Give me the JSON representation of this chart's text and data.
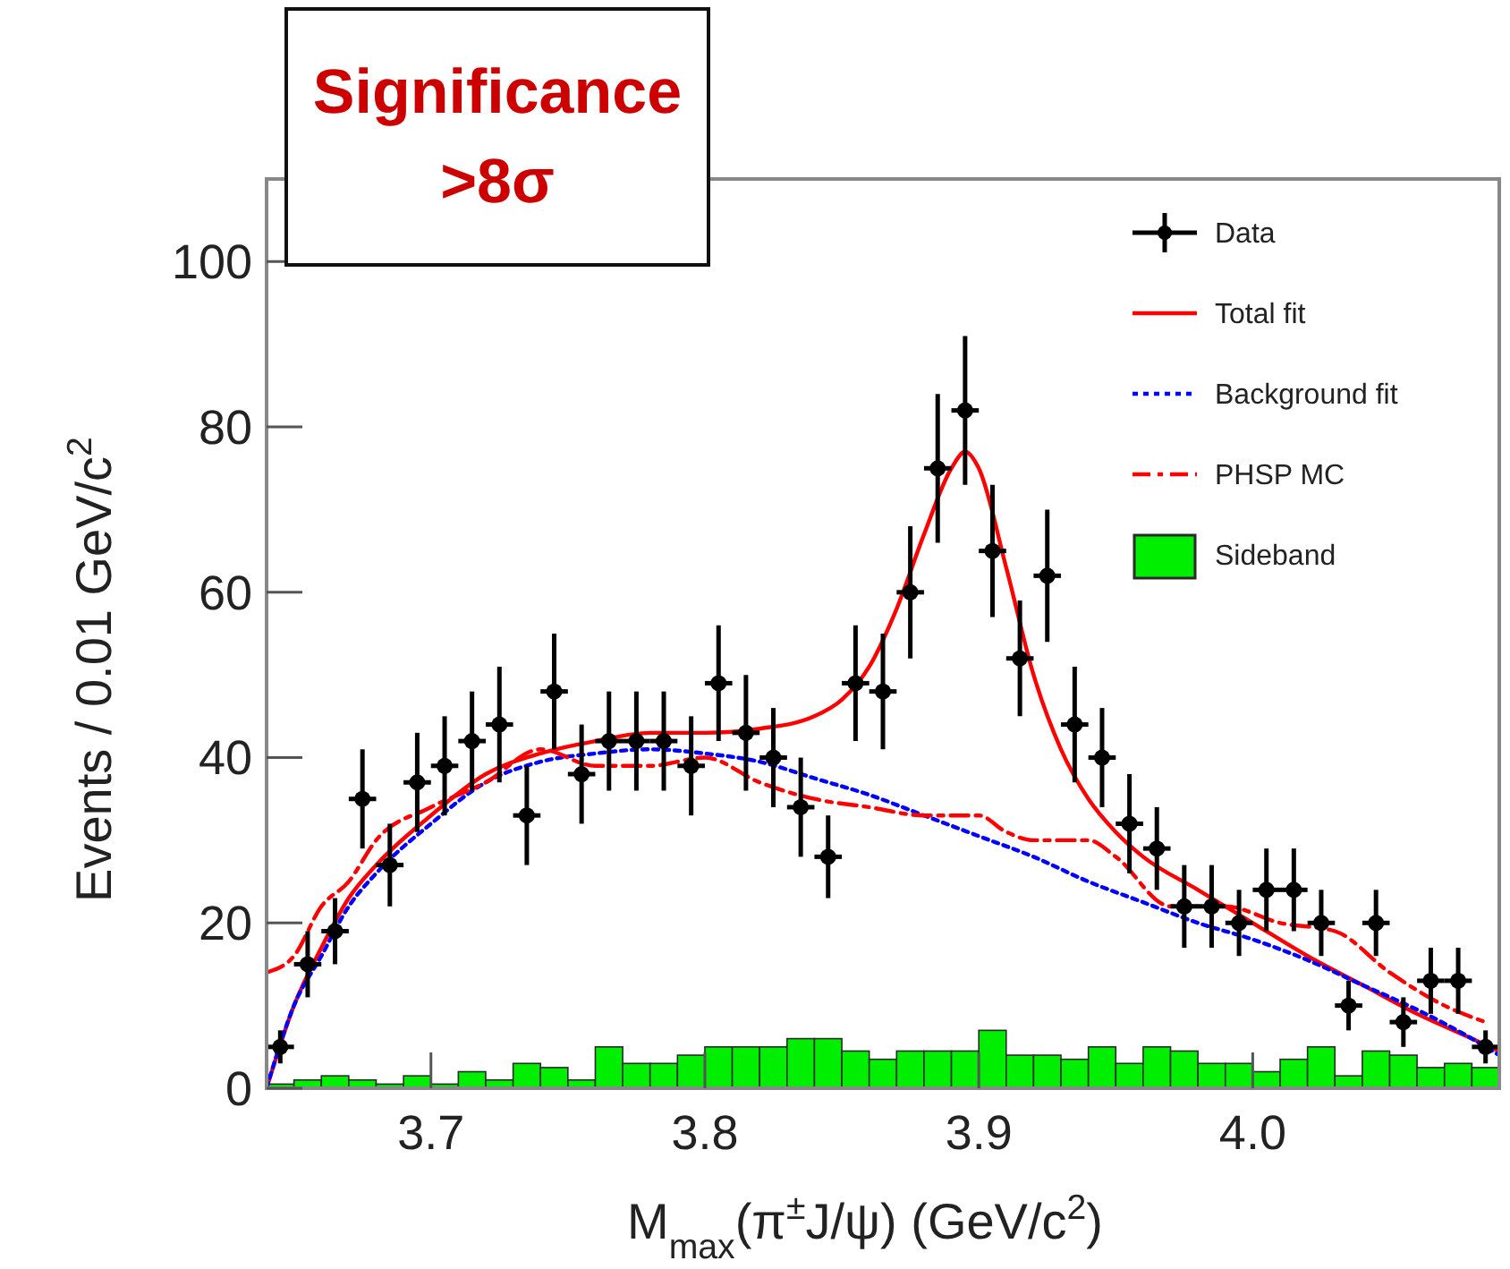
{
  "chart_data": {
    "type": "scatter",
    "annotations": [
      "Significance\n>8σ"
    ],
    "xlabel": "M$_{max}$(π$^{±}$J/ψ) (GeV/c$^{2}$)",
    "ylabel": "Events / 0.01 GeV/c$^{2}$",
    "xlim": [
      3.64,
      4.09
    ],
    "ylim": [
      0,
      110
    ],
    "xticks": [
      {
        "value": 3.7,
        "label": "3.7"
      },
      {
        "value": 3.8,
        "label": "3.8"
      },
      {
        "value": 3.9,
        "label": "3.9"
      },
      {
        "value": 4.0,
        "label": "4.0"
      }
    ],
    "yticks": [
      0,
      20,
      40,
      60,
      80,
      100
    ],
    "legend": "top right",
    "series": [
      {
        "name": "Data",
        "color": "#000000",
        "marker": "circle",
        "x": [
          3.645,
          3.655,
          3.665,
          3.675,
          3.685,
          3.695,
          3.705,
          3.715,
          3.725,
          3.735,
          3.745,
          3.755,
          3.765,
          3.775,
          3.785,
          3.795,
          3.805,
          3.815,
          3.825,
          3.835,
          3.845,
          3.855,
          3.865,
          3.875,
          3.885,
          3.895,
          3.905,
          3.915,
          3.925,
          3.935,
          3.945,
          3.955,
          3.965,
          3.975,
          3.985,
          3.995,
          4.005,
          4.015,
          4.025,
          4.035,
          4.045,
          4.055,
          4.065,
          4.075,
          4.085
        ],
        "values": [
          5,
          15,
          19,
          35,
          27,
          37,
          39,
          42,
          44,
          33,
          48,
          38,
          42,
          42,
          42,
          39,
          49,
          43,
          40,
          34,
          28,
          49,
          48,
          60,
          75,
          82,
          65,
          52,
          62,
          44,
          40,
          32,
          29,
          22,
          22,
          20,
          24,
          24,
          20,
          10,
          20,
          8,
          13,
          13,
          5
        ],
        "errors": [
          2,
          4,
          4,
          6,
          5,
          6,
          6,
          6,
          7,
          6,
          7,
          6,
          6,
          6,
          6,
          6,
          7,
          7,
          6,
          6,
          5,
          7,
          7,
          8,
          9,
          9,
          8,
          7,
          8,
          7,
          6,
          6,
          5,
          5,
          5,
          4,
          5,
          5,
          4,
          3,
          4,
          3,
          4,
          4,
          2
        ],
        "xerrors": [
          0.005,
          0.005,
          0.005,
          0.005,
          0.005,
          0.005,
          0.005,
          0.005,
          0.005,
          0.005,
          0.005,
          0.005,
          0.005,
          0.005,
          0.005,
          0.005,
          0.005,
          0.005,
          0.005,
          0.005,
          0.005,
          0.005,
          0.005,
          0.005,
          0.005,
          0.005,
          0.005,
          0.005,
          0.005,
          0.005,
          0.005,
          0.005,
          0.005,
          0.005,
          0.005,
          0.005,
          0.005,
          0.005,
          0.005,
          0.005,
          0.005,
          0.005,
          0.005,
          0.005,
          0.005
        ]
      },
      {
        "name": "Total fit",
        "type": "line",
        "color": "#ff0000",
        "line_style": "solid",
        "x": [
          3.64,
          3.65,
          3.66,
          3.67,
          3.68,
          3.7,
          3.72,
          3.74,
          3.76,
          3.78,
          3.8,
          3.82,
          3.84,
          3.85,
          3.86,
          3.87,
          3.88,
          3.89,
          3.895,
          3.9,
          3.91,
          3.92,
          3.93,
          3.94,
          3.95,
          3.96,
          3.98,
          4.0,
          4.02,
          4.04,
          4.06,
          4.08,
          4.09
        ],
        "values": [
          0,
          10,
          17,
          23,
          27,
          33,
          38,
          40.5,
          42,
          43,
          43,
          43.5,
          45,
          47,
          51,
          58,
          67,
          75,
          77,
          75,
          63,
          50,
          41,
          35,
          31,
          28,
          24,
          20,
          16,
          12.5,
          9,
          6,
          4.5
        ]
      },
      {
        "name": "Background fit",
        "type": "line",
        "color": "#0000ff",
        "line_style": "dotted",
        "x": [
          3.64,
          3.65,
          3.66,
          3.67,
          3.68,
          3.7,
          3.72,
          3.74,
          3.76,
          3.78,
          3.8,
          3.82,
          3.84,
          3.86,
          3.88,
          3.9,
          3.92,
          3.94,
          3.96,
          3.98,
          4.0,
          4.02,
          4.04,
          4.06,
          4.08,
          4.09
        ],
        "values": [
          0,
          10,
          16,
          22,
          26,
          32,
          37,
          39.5,
          40.5,
          41,
          40.5,
          39.5,
          37.5,
          35.5,
          33,
          30.5,
          28,
          25,
          22.5,
          20,
          18,
          15.5,
          12.5,
          9.5,
          6,
          4
        ]
      },
      {
        "name": "PHSP MC",
        "type": "line",
        "color": "#ff0000",
        "line_style": "dashed",
        "x": [
          3.64,
          3.65,
          3.66,
          3.67,
          3.68,
          3.7,
          3.72,
          3.74,
          3.76,
          3.78,
          3.8,
          3.82,
          3.84,
          3.86,
          3.88,
          3.9,
          3.91,
          3.92,
          3.94,
          3.95,
          3.97,
          3.99,
          4.01,
          4.03,
          4.05,
          4.07,
          4.085
        ],
        "values": [
          14,
          16,
          22,
          25,
          30,
          34,
          37,
          41,
          39,
          39,
          40,
          37,
          35,
          34,
          33,
          33,
          31,
          30,
          30,
          28,
          22,
          22,
          20,
          19,
          14,
          10,
          8
        ]
      },
      {
        "name": "Sideband",
        "type": "histogram",
        "color": "#00ee00",
        "bins": [
          3.64,
          3.65,
          3.66,
          3.67,
          3.68,
          3.69,
          3.7,
          3.71,
          3.72,
          3.73,
          3.74,
          3.75,
          3.76,
          3.77,
          3.78,
          3.79,
          3.8,
          3.81,
          3.82,
          3.83,
          3.84,
          3.85,
          3.86,
          3.87,
          3.88,
          3.89,
          3.9,
          3.91,
          3.92,
          3.93,
          3.94,
          3.95,
          3.96,
          3.97,
          3.98,
          3.99,
          4.0,
          4.01,
          4.02,
          4.03,
          4.04,
          4.05,
          4.06,
          4.07,
          4.08,
          4.09
        ],
        "values": [
          0.5,
          1,
          1.5,
          1,
          0.5,
          1.5,
          0.5,
          2,
          1,
          3,
          2.5,
          1,
          5,
          3,
          3,
          4,
          5,
          5,
          5,
          6,
          6,
          4.5,
          3.5,
          4.5,
          4.5,
          4.5,
          7,
          4,
          4,
          3.5,
          5,
          3,
          5,
          4.5,
          3,
          3,
          2,
          3.5,
          5,
          1.5,
          4.5,
          4,
          2.5,
          3,
          2.5
        ]
      }
    ]
  }
}
